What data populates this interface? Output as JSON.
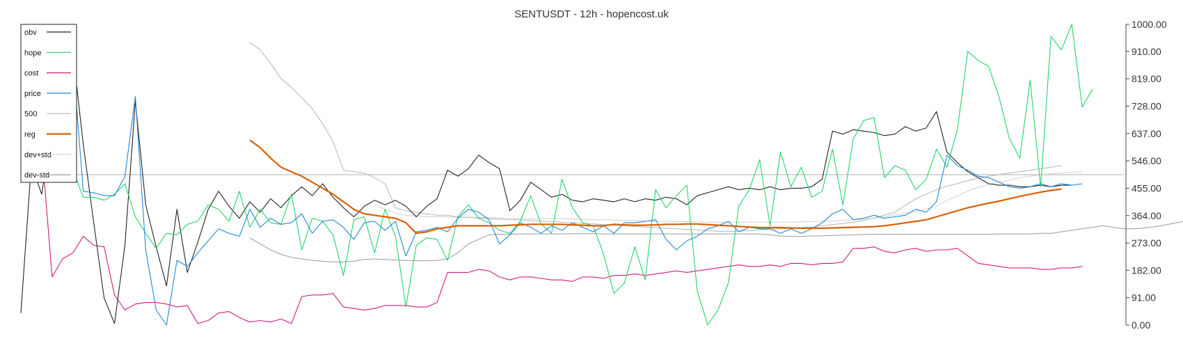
{
  "chart_data": {
    "type": "line",
    "title": "SENTUSDT - 12h - hopencost.uk",
    "xlabel": "",
    "ylabel": "",
    "ylim": [
      0,
      1000
    ],
    "y_ticks": [
      "1000.00",
      "910.00",
      "819.00",
      "728.00",
      "637.00",
      "546.00",
      "455.00",
      "364.00",
      "273.00",
      "182.00",
      "91.00",
      "0.00"
    ],
    "y_axis_side": "right",
    "grid": false,
    "legend_position": "top-left",
    "horizontal_line": 500,
    "series": [
      {
        "name": "obv",
        "color": "#222222",
        "width": 1.1,
        "x_start": 0,
        "values": [
          40,
          535,
          435,
          655,
          765,
          905,
          600,
          340,
          90,
          5,
          265,
          745,
          400,
          260,
          130,
          385,
          175,
          275,
          385,
          445,
          395,
          355,
          410,
          375,
          420,
          390,
          430,
          460,
          430,
          470,
          425,
          390,
          360,
          395,
          415,
          400,
          415,
          395,
          360,
          395,
          420,
          515,
          495,
          520,
          565,
          540,
          520,
          380,
          415,
          475,
          450,
          425,
          435,
          415,
          410,
          420,
          415,
          410,
          420,
          410,
          420,
          415,
          425,
          420,
          400,
          430,
          440,
          450,
          460,
          450,
          455,
          450,
          460,
          450,
          455,
          455,
          460,
          485,
          645,
          635,
          650,
          645,
          640,
          630,
          635,
          660,
          645,
          655,
          710,
          575,
          540,
          510,
          490,
          470,
          465,
          465,
          460,
          460,
          465,
          460,
          465,
          465
        ]
      },
      {
        "name": "hope",
        "color": "#22d46a",
        "width": 1.1,
        "x_start": 2,
        "values": [
          505,
          520,
          525,
          515,
          425,
          425,
          415,
          435,
          470,
          360,
          305,
          255,
          305,
          300,
          335,
          345,
          400,
          385,
          345,
          445,
          325,
          385,
          340,
          335,
          435,
          250,
          355,
          345,
          300,
          165,
          350,
          360,
          240,
          385,
          295,
          60,
          265,
          290,
          285,
          215,
          360,
          400,
          355,
          340,
          315,
          305,
          345,
          430,
          335,
          305,
          485,
          390,
          340,
          330,
          235,
          105,
          140,
          260,
          150,
          450,
          390,
          430,
          465,
          115,
          0,
          50,
          140,
          395,
          450,
          550,
          330,
          575,
          460,
          525,
          425,
          445,
          585,
          400,
          620,
          680,
          690,
          490,
          530,
          515,
          450,
          485,
          585,
          525,
          650,
          910,
          880,
          860,
          760,
          620,
          555,
          815,
          460,
          960,
          915,
          1000,
          725,
          785
        ]
      },
      {
        "name": "cost",
        "color": "#d01c7a",
        "width": 1.1,
        "x_start": 2,
        "values": [
          590,
          160,
          220,
          240,
          295,
          265,
          260,
          100,
          50,
          70,
          75,
          75,
          70,
          60,
          65,
          5,
          15,
          40,
          45,
          25,
          10,
          15,
          10,
          20,
          5,
          95,
          100,
          100,
          105,
          60,
          55,
          50,
          55,
          65,
          65,
          65,
          60,
          60,
          75,
          175,
          175,
          175,
          185,
          180,
          160,
          150,
          160,
          160,
          155,
          150,
          150,
          145,
          160,
          160,
          155,
          165,
          165,
          170,
          165,
          170,
          175,
          180,
          175,
          180,
          185,
          190,
          195,
          200,
          195,
          195,
          200,
          195,
          205,
          205,
          200,
          205,
          205,
          210,
          255,
          255,
          260,
          245,
          240,
          250,
          255,
          245,
          250,
          250,
          255,
          230,
          205,
          200,
          195,
          190,
          190,
          190,
          185,
          185,
          190,
          190,
          195
        ]
      },
      {
        "name": "price",
        "color": "#1f87d8",
        "width": 1.1,
        "x_start": 2,
        "values": [
          895,
          925,
          940,
          880,
          445,
          440,
          430,
          430,
          495,
          760,
          250,
          50,
          0,
          215,
          195,
          240,
          280,
          320,
          305,
          295,
          385,
          325,
          355,
          335,
          340,
          370,
          305,
          345,
          350,
          325,
          285,
          340,
          345,
          315,
          345,
          230,
          310,
          315,
          325,
          310,
          355,
          385,
          375,
          350,
          270,
          300,
          340,
          325,
          305,
          330,
          315,
          340,
          325,
          310,
          330,
          305,
          340,
          340,
          345,
          350,
          285,
          250,
          280,
          295,
          320,
          330,
          345,
          310,
          325,
          320,
          320,
          305,
          320,
          305,
          320,
          340,
          370,
          385,
          350,
          355,
          365,
          355,
          360,
          365,
          385,
          375,
          410,
          565,
          530,
          515,
          495,
          490,
          475,
          460,
          455,
          460,
          470,
          460,
          470,
          465,
          470
        ]
      },
      {
        "name": "500",
        "color": "#b4b4b4",
        "width": 1.0,
        "x_start": 22,
        "values": [
          940,
          915,
          870,
          820,
          790,
          755,
          720,
          670,
          610,
          515,
          510,
          505,
          490,
          470,
          390,
          380,
          375,
          370,
          365,
          365,
          360,
          358,
          356,
          354,
          352,
          350,
          350,
          348,
          346,
          344,
          342,
          340,
          338,
          336,
          334,
          332,
          330,
          328,
          326,
          324,
          322,
          320,
          318,
          316,
          314,
          312,
          312,
          312,
          314,
          316,
          318,
          320,
          322,
          324,
          326,
          330,
          334,
          338,
          342,
          348,
          356,
          366,
          375,
          398,
          420,
          435,
          450,
          462,
          470,
          480,
          488,
          495,
          500,
          505,
          510,
          515,
          520,
          525,
          530
        ]
      },
      {
        "name": "reg",
        "color": "#d95f02",
        "width": 2.2,
        "x_start": 22,
        "values": [
          615,
          590,
          555,
          525,
          510,
          495,
          475,
          455,
          435,
          410,
          385,
          370,
          365,
          360,
          355,
          340,
          305,
          310,
          320,
          325,
          330,
          330,
          330,
          330,
          330,
          332,
          333,
          335,
          335,
          335,
          335,
          333,
          332,
          330,
          330,
          335,
          333,
          332,
          332,
          333,
          335,
          335,
          336,
          336,
          334,
          332,
          330,
          328,
          326,
          324,
          324,
          324,
          323,
          322,
          322,
          322,
          323,
          324,
          325,
          326,
          327,
          330,
          335,
          340,
          345,
          350,
          360,
          370,
          380,
          390,
          398,
          405,
          412,
          420,
          428,
          435,
          442,
          448,
          452
        ]
      },
      {
        "name": "dev+std",
        "color": "#cfcfcf",
        "width": 1.0,
        "x_start": 34,
        "values": [
          400,
          385,
          372,
          365,
          362,
          360,
          360,
          360,
          358,
          358,
          358,
          357,
          356,
          355,
          354,
          354,
          354,
          354,
          354,
          353,
          352,
          350,
          350,
          349,
          348,
          347,
          346,
          345,
          345,
          344,
          344,
          343,
          342,
          342,
          342,
          342,
          342,
          342,
          342,
          342,
          342,
          343,
          344,
          345,
          346,
          348,
          350,
          352,
          355,
          360,
          366,
          372,
          378,
          385,
          395,
          415,
          430,
          445,
          458,
          468,
          475,
          482,
          490,
          495,
          500,
          503,
          506,
          508,
          510
        ]
      },
      {
        "name": "dev-std",
        "color": "#9a9a9a",
        "width": 1.0,
        "x_start": 22,
        "values": [
          290,
          270,
          250,
          235,
          225,
          220,
          215,
          212,
          210,
          210,
          212,
          218,
          220,
          218,
          216,
          215,
          214,
          214,
          215,
          220,
          240,
          270,
          285,
          300,
          302,
          302,
          303,
          303,
          303,
          303,
          303,
          304,
          304,
          304,
          303,
          303,
          303,
          303,
          303,
          303,
          303,
          303,
          303,
          303,
          303,
          303,
          303,
          303,
          303,
          303,
          300,
          296,
          295,
          295,
          296,
          297,
          298,
          299,
          300,
          301,
          302,
          302,
          302,
          302,
          302,
          302,
          302,
          302,
          302,
          302,
          302,
          302,
          303,
          303,
          303,
          303,
          305,
          305,
          310,
          315,
          320,
          325,
          330,
          325,
          320,
          320,
          323,
          327,
          333,
          340,
          346,
          352,
          358,
          366,
          374,
          380,
          386
        ]
      }
    ]
  }
}
